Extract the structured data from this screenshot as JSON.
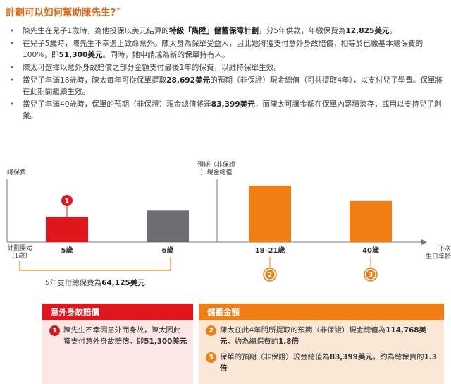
{
  "title": "計劃可以如何幫助陳先生?",
  "title_arrow": "˝",
  "bullets": [
    [
      "陳先生在兒子1歲時，為他投保以美元結算的",
      "特級「雋陞」儲蓄保障計劃",
      "，分5年供款，年繳保費為",
      "12,825美元",
      "。"
    ],
    [
      "在兒子5歲時，陳先生不幸遇上致命意外。陳太身為保單受益人，因此她將獲支付意外身故賠償，相等於已繳基本總保費的100%，即",
      "51,300美元",
      "。同時，她申請成為新的保單持有人。"
    ],
    [
      "陳太可選擇以意外身故賠償之部分金額支付最後1年的保費，以維持保單生效。"
    ],
    [
      "當兒子年滿18歲時，陳太每年可從保單提取",
      "28,692美元",
      "的預期（非保證）現金總值（可共提取4年），以支付兒子學費。保單將在此期間繼續生效。"
    ],
    [
      "當兒子年滿40歲時，保單的預期（非保證）現金總值將達",
      "83,399美元",
      "，而陳太可讓金額在保單內累積滾存，或用以支持兒子創業。"
    ]
  ],
  "chart_data": {
    "type": "bar",
    "categories": [
      "5歲",
      "6歲",
      "18–21歲",
      "40歲"
    ],
    "values": [
      51300,
      64125,
      114768,
      83399
    ],
    "colors": [
      "#e0161d",
      "#6d6e71",
      "#f07e14",
      "#f07e14"
    ],
    "left_axis_label": "總保費",
    "right_axis_label": "預期（非保證）現金總值",
    "axis_start_label": "計劃開始（1歲）",
    "axis_end_label": "下次生日年齡",
    "markers": [
      {
        "label": "1",
        "category": "5歲",
        "position": "above",
        "color": "#e0161d"
      },
      {
        "label": "2",
        "category": "18–21歲",
        "position": "below",
        "color": "#f07e14"
      },
      {
        "label": "3",
        "category": "40歲",
        "position": "below",
        "color": "#f07e14"
      }
    ],
    "bracket_note": "5年支付總保費為64,125美元"
  },
  "pay_note": {
    "prefix": "5年支付總保費為",
    "amount": "64,125美元"
  },
  "left_box": {
    "heading": "意外身故賠償",
    "item_num": "1",
    "text": "陳先生不幸因意外而身故，陳太因此獲支付意外身故賠償，即",
    "amount": "51,300美元"
  },
  "right_box": {
    "heading": "儲蓄金額",
    "items": [
      {
        "num": "2",
        "text": "陳太在此4年間所提取的預期（非保證）現金總值為",
        "amount": "114,768美元",
        "suffix": "，約為總保費的",
        "ratio": "1.8倍"
      },
      {
        "num": "3",
        "text": "保單的預期（非保證）現金總值為",
        "amount": "83,399美元",
        "suffix": "，約為總保費的",
        "ratio": "1.3倍"
      }
    ]
  }
}
